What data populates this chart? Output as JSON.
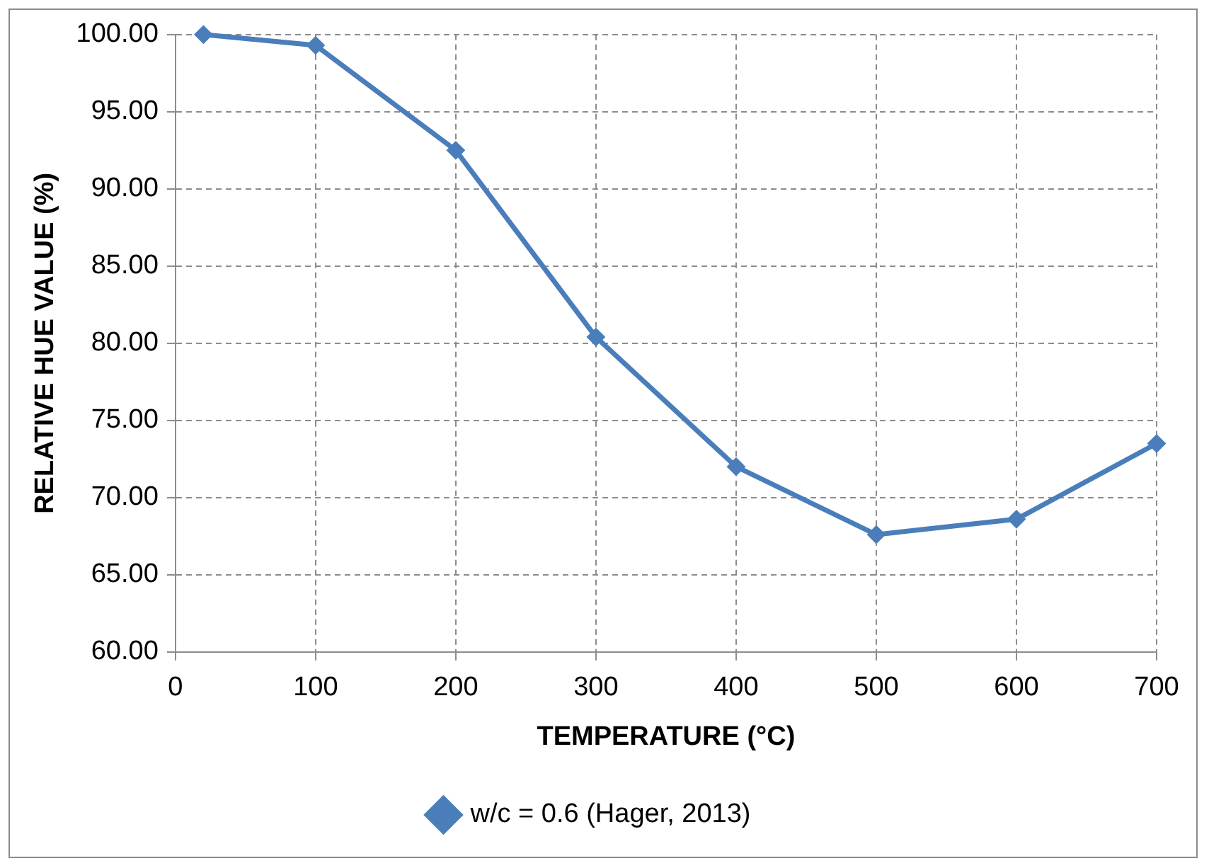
{
  "chart_data": {
    "type": "line",
    "xlabel": "TEMPERATURE (°C)",
    "ylabel": "RELATIVE HUE VALUE (%)",
    "x": [
      20,
      100,
      200,
      300,
      400,
      500,
      600,
      700
    ],
    "series": [
      {
        "name": "w/c = 0.6 (Hager, 2013)",
        "color": "#4a7ebb",
        "values": [
          100.0,
          99.3,
          92.5,
          80.4,
          72.0,
          67.6,
          68.6,
          73.5
        ]
      }
    ],
    "xlim": [
      0,
      700
    ],
    "xticks": [
      0,
      100,
      200,
      300,
      400,
      500,
      600,
      700
    ],
    "ylim": [
      60,
      100
    ],
    "yticks": [
      {
        "value": 60,
        "label": "60.00"
      },
      {
        "value": 65,
        "label": "65.00"
      },
      {
        "value": 70,
        "label": "70.00"
      },
      {
        "value": 75,
        "label": "75.00"
      },
      {
        "value": 80,
        "label": "80.00"
      },
      {
        "value": 85,
        "label": "85.00"
      },
      {
        "value": 90,
        "label": "90.00"
      },
      {
        "value": 95,
        "label": "95.00"
      },
      {
        "value": 100,
        "label": "100.00"
      }
    ],
    "grid": true,
    "legend": "bottom",
    "marker": "diamond",
    "line_style": "solid"
  }
}
